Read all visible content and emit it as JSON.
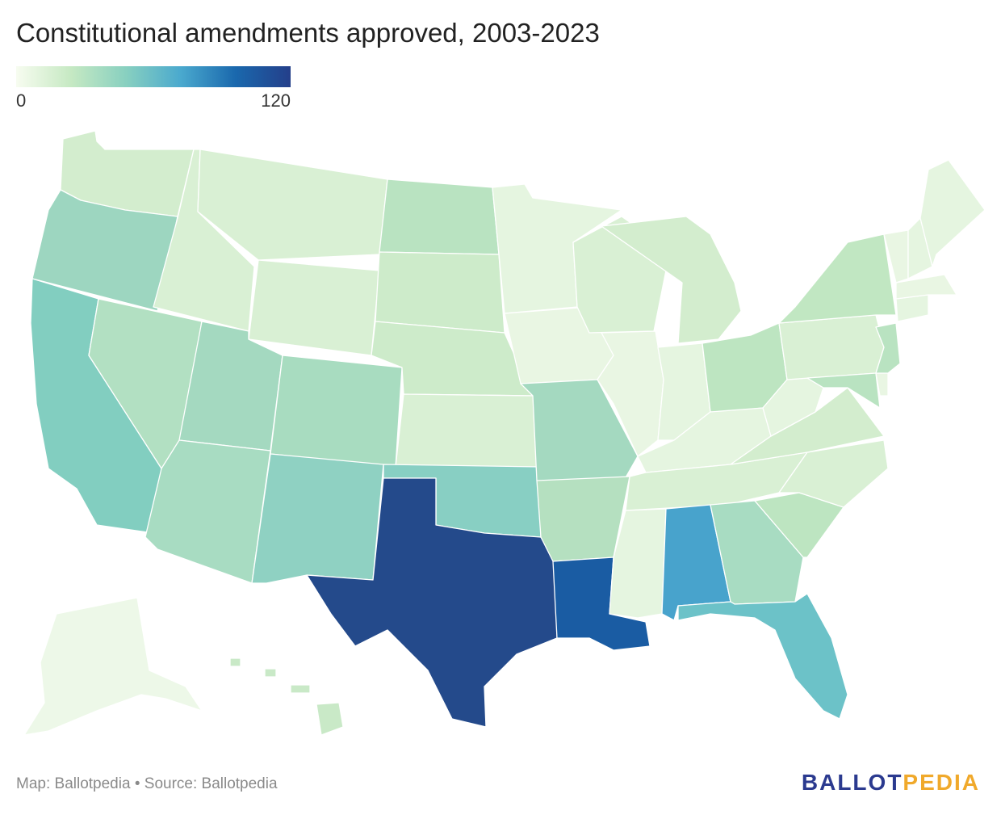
{
  "title": "Constitutional amendments approved, 2003-2023",
  "legend": {
    "min_label": "0",
    "max_label": "120",
    "min": 0,
    "max": 120,
    "colors": [
      "#f7fcf0",
      "#c6e9c3",
      "#88d0c0",
      "#4aa9ce",
      "#1a68ad",
      "#243f8a"
    ]
  },
  "footer": {
    "map_credit": "Map: Ballotpedia",
    "separator": "•",
    "source": "Source: Ballotpedia"
  },
  "logo": {
    "part1": "BALLOT",
    "part2": "PEDIA"
  },
  "colors": {
    "land_default": "#d6eed2",
    "border": "#ffffff",
    "brand_blue": "#2b3a8f",
    "brand_orange": "#f0a92b"
  },
  "states": [
    {
      "name": "Washington",
      "fill": "#d3edce"
    },
    {
      "name": "Oregon",
      "fill": "#9dd6c0"
    },
    {
      "name": "California",
      "fill": "#82cec0"
    },
    {
      "name": "Nevada",
      "fill": "#b2e0c2"
    },
    {
      "name": "Idaho",
      "fill": "#d9f0d4"
    },
    {
      "name": "Montana",
      "fill": "#d9f0d4"
    },
    {
      "name": "Wyoming",
      "fill": "#d9f0d4"
    },
    {
      "name": "Utah",
      "fill": "#a4d9c0"
    },
    {
      "name": "Arizona",
      "fill": "#a8dcc2"
    },
    {
      "name": "Colorado",
      "fill": "#a8dcc0"
    },
    {
      "name": "New Mexico",
      "fill": "#8fd1c2"
    },
    {
      "name": "North Dakota",
      "fill": "#b9e3c1"
    },
    {
      "name": "South Dakota",
      "fill": "#cdebca"
    },
    {
      "name": "Nebraska",
      "fill": "#cdebca"
    },
    {
      "name": "Kansas",
      "fill": "#d9f0d4"
    },
    {
      "name": "Oklahoma",
      "fill": "#88cfc3"
    },
    {
      "name": "Texas",
      "fill": "#244a8b"
    },
    {
      "name": "Minnesota",
      "fill": "#e5f5e0"
    },
    {
      "name": "Iowa",
      "fill": "#e9f6e3"
    },
    {
      "name": "Missouri",
      "fill": "#a4d9c0"
    },
    {
      "name": "Arkansas",
      "fill": "#b5e0c0"
    },
    {
      "name": "Louisiana",
      "fill": "#1a5ca3"
    },
    {
      "name": "Wisconsin",
      "fill": "#d9f0d4"
    },
    {
      "name": "Illinois",
      "fill": "#e9f6e3"
    },
    {
      "name": "Michigan",
      "fill": "#d3edce"
    },
    {
      "name": "Indiana",
      "fill": "#e5f5e0"
    },
    {
      "name": "Ohio",
      "fill": "#bde5c1"
    },
    {
      "name": "Kentucky",
      "fill": "#e5f5e0"
    },
    {
      "name": "Tennessee",
      "fill": "#d9f0d4"
    },
    {
      "name": "Mississippi",
      "fill": "#e5f5e0"
    },
    {
      "name": "Alabama",
      "fill": "#48a3cc"
    },
    {
      "name": "Georgia",
      "fill": "#a8dcc2"
    },
    {
      "name": "Florida",
      "fill": "#6cc2c8"
    },
    {
      "name": "South Carolina",
      "fill": "#bde5c1"
    },
    {
      "name": "North Carolina",
      "fill": "#d9f0d4"
    },
    {
      "name": "Virginia",
      "fill": "#d3edce"
    },
    {
      "name": "West Virginia",
      "fill": "#e5f5e0"
    },
    {
      "name": "Pennsylvania",
      "fill": "#d9f0d4"
    },
    {
      "name": "New York",
      "fill": "#c1e7c2"
    },
    {
      "name": "Maryland",
      "fill": "#b9e3c1"
    },
    {
      "name": "Delaware",
      "fill": "#e9f6e3"
    },
    {
      "name": "New Jersey",
      "fill": "#b9e3c1"
    },
    {
      "name": "Connecticut",
      "fill": "#e5f5e0"
    },
    {
      "name": "Massachusetts",
      "fill": "#e9f6e3"
    },
    {
      "name": "Vermont",
      "fill": "#e9f6e3"
    },
    {
      "name": "New Hampshire",
      "fill": "#e5f5e0"
    },
    {
      "name": "Maine",
      "fill": "#e5f5e0"
    },
    {
      "name": "Alaska",
      "fill": "#edf8e8"
    },
    {
      "name": "Hawaii",
      "fill": "#c9e9c7"
    }
  ]
}
